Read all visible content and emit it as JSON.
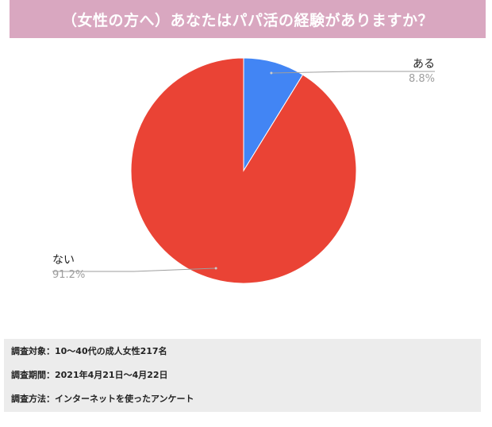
{
  "title": "（女性の方へ）あなたはパパ活の経験がありますか？",
  "colors": {
    "title_bg": "#d9a7c0",
    "slice_aru": "#4285f4",
    "slice_nai": "#ea4335",
    "info_bg": "#ececec"
  },
  "chart_data": {
    "type": "pie",
    "title": "（女性の方へ）あなたはパパ活の経験がありますか？",
    "slices": [
      {
        "label": "ある",
        "value": 8.8,
        "value_label": "8.8%",
        "color": "#4285f4"
      },
      {
        "label": "ない",
        "value": 91.2,
        "value_label": "91.2%",
        "color": "#ea4335"
      }
    ],
    "legend": "none (labels placed beside slices)"
  },
  "survey": {
    "target": "調査対象：10～40代の成人女性217名",
    "period": "調査期間：2021年4月21日～4月22日",
    "method": "調査方法：インターネットを使ったアンケート"
  }
}
